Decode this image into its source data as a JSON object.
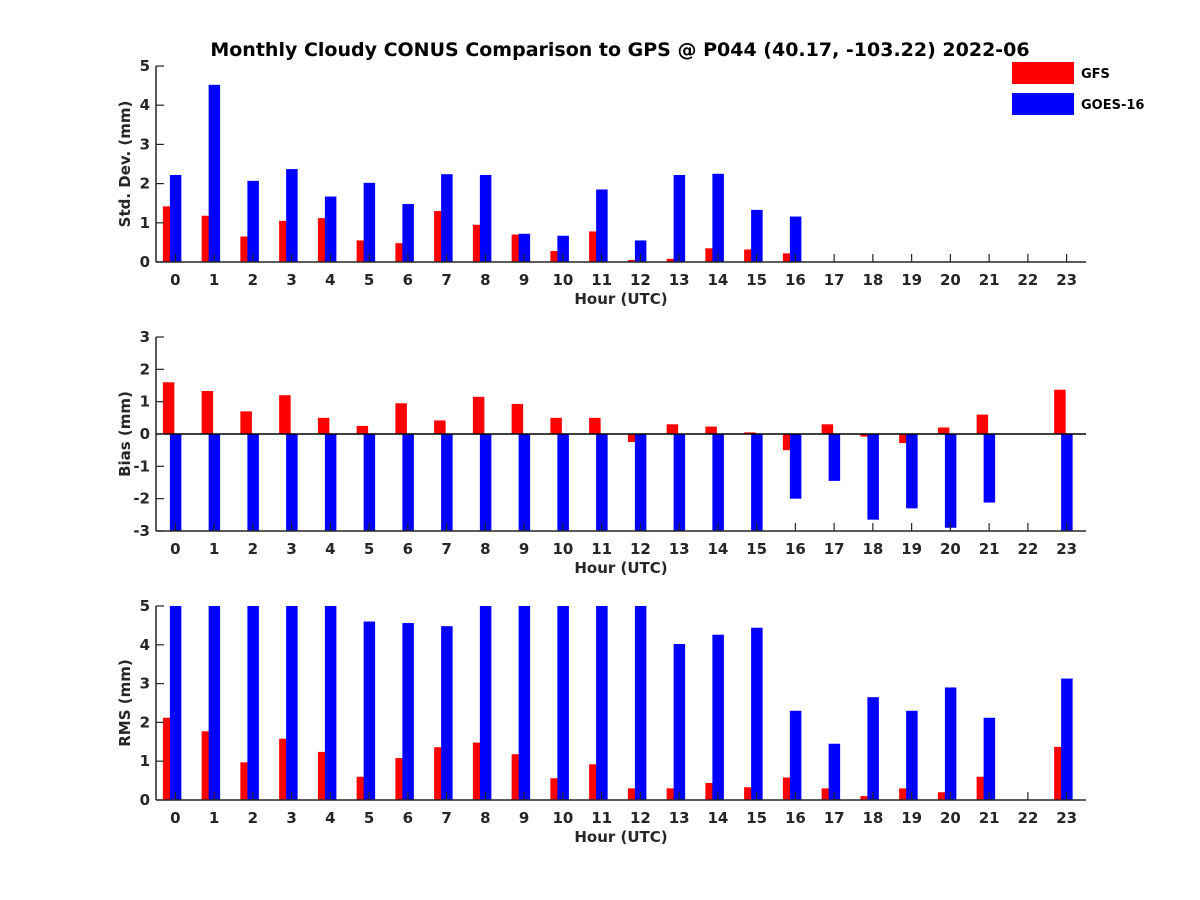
{
  "chart_data": {
    "type": "bar",
    "title": "Monthly Cloudy CONUS Comparison to GPS @ P044 (40.17, -103.22) 2022-06",
    "legend": {
      "placement": "top-right",
      "entries": [
        {
          "name": "GFS",
          "color": "#ff0000"
        },
        {
          "name": "GOES-16",
          "color": "#0000ff"
        }
      ]
    },
    "categories": [
      "0",
      "1",
      "2",
      "3",
      "4",
      "5",
      "6",
      "7",
      "8",
      "9",
      "10",
      "11",
      "12",
      "13",
      "14",
      "15",
      "16",
      "17",
      "18",
      "19",
      "20",
      "21",
      "22",
      "23"
    ],
    "panels": [
      {
        "id": "std",
        "xlabel": "Hour (UTC)",
        "ylabel": "Std. Dev. (mm)",
        "ylim": [
          0,
          5
        ],
        "yticks": [
          0,
          1,
          2,
          3,
          4,
          5
        ],
        "series": [
          {
            "name": "GFS",
            "values": [
              1.42,
              1.18,
              0.65,
              1.05,
              1.12,
              0.55,
              0.48,
              1.3,
              0.95,
              0.7,
              0.28,
              0.78,
              0.05,
              0.08,
              0.35,
              0.32,
              0.22,
              null,
              null,
              null,
              null,
              null,
              null,
              null
            ]
          },
          {
            "name": "GOES-16",
            "values": [
              2.22,
              4.52,
              2.07,
              2.37,
              1.67,
              2.02,
              1.48,
              2.24,
              2.22,
              0.72,
              0.67,
              1.85,
              0.55,
              2.22,
              2.25,
              1.33,
              1.16,
              null,
              null,
              null,
              null,
              null,
              null,
              null
            ]
          }
        ]
      },
      {
        "id": "bias",
        "xlabel": "Hour (UTC)",
        "ylabel": "Bias (mm)",
        "ylim": [
          -3,
          3
        ],
        "yticks": [
          -3,
          -2,
          -1,
          0,
          1,
          2,
          3
        ],
        "series": [
          {
            "name": "GFS",
            "values": [
              1.6,
              1.33,
              0.7,
              1.2,
              0.5,
              0.25,
              0.95,
              0.42,
              1.15,
              0.93,
              0.5,
              0.5,
              -0.25,
              0.3,
              0.23,
              0.05,
              -0.5,
              0.3,
              -0.08,
              -0.28,
              0.2,
              0.6,
              null,
              1.37
            ]
          },
          {
            "name": "GOES-16",
            "values": [
              -3.4,
              -3.4,
              -3.4,
              -3.4,
              -3.4,
              -3.4,
              -3.4,
              -3.4,
              -3.4,
              -3.4,
              -3.4,
              -3.4,
              -3.4,
              -3.4,
              -3.4,
              -3.4,
              -2.0,
              -1.45,
              -2.65,
              -2.3,
              -2.9,
              -2.12,
              null,
              -3.4
            ]
          }
        ]
      },
      {
        "id": "rms",
        "xlabel": "Hour (UTC)",
        "ylabel": "RMS (mm)",
        "ylim": [
          0,
          5
        ],
        "yticks": [
          0,
          1,
          2,
          3,
          4,
          5
        ],
        "series": [
          {
            "name": "GFS",
            "values": [
              2.12,
              1.77,
              0.97,
              1.58,
              1.24,
              0.6,
              1.08,
              1.36,
              1.48,
              1.18,
              0.56,
              0.92,
              0.3,
              0.3,
              0.44,
              0.33,
              0.58,
              0.3,
              0.1,
              0.3,
              0.2,
              0.6,
              null,
              1.37
            ]
          },
          {
            "name": "GOES-16",
            "values": [
              5.2,
              5.2,
              5.2,
              5.2,
              5.2,
              4.6,
              4.56,
              4.48,
              5.2,
              5.2,
              5.2,
              5.2,
              5.2,
              4.02,
              4.26,
              4.44,
              2.3,
              1.45,
              2.65,
              2.3,
              2.9,
              2.12,
              null,
              3.13
            ]
          }
        ]
      }
    ]
  }
}
